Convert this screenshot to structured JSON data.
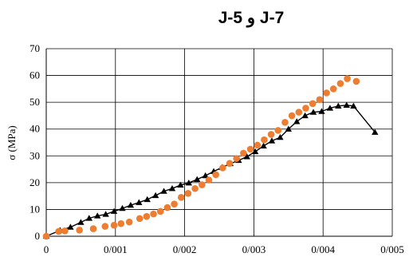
{
  "chart_data": {
    "type": "scatter",
    "title": "J-7 و J-5",
    "xlabel": "",
    "ylabel": "σ (MPa)",
    "xlim": [
      0,
      0.005
    ],
    "ylim": [
      0,
      70
    ],
    "x_ticks": [
      "0",
      "0/001",
      "0/002",
      "0/003",
      "0/004",
      "0/005"
    ],
    "y_ticks": [
      "0",
      "10",
      "20",
      "30",
      "40",
      "50",
      "60",
      "70"
    ],
    "grid": true,
    "series": [
      {
        "marker": "triangle",
        "color": "#000000",
        "line": true,
        "x": [
          0,
          0.0002,
          0.00035,
          0.0005,
          0.00062,
          0.00074,
          0.00086,
          0.00098,
          0.0011,
          0.00122,
          0.00134,
          0.00146,
          0.00158,
          0.0017,
          0.00182,
          0.00194,
          0.00206,
          0.00218,
          0.0023,
          0.00242,
          0.00254,
          0.00266,
          0.00278,
          0.0029,
          0.00302,
          0.00314,
          0.00326,
          0.00338,
          0.0035,
          0.00362,
          0.00374,
          0.00386,
          0.00398,
          0.0041,
          0.00422,
          0.00434,
          0.00444,
          0.00475
        ],
        "y": [
          0,
          2.2,
          3.4,
          5.2,
          6.7,
          7.6,
          8.2,
          9.3,
          10.4,
          11.6,
          12.6,
          13.7,
          15.2,
          16.8,
          17.8,
          19.1,
          19.9,
          21.2,
          22.6,
          24.2,
          25.7,
          27.1,
          28.3,
          29.7,
          31.6,
          33.7,
          35.6,
          36.9,
          40.0,
          42.8,
          45.0,
          46.3,
          46.6,
          47.8,
          48.6,
          48.9,
          48.6,
          38.8
        ]
      },
      {
        "marker": "circle",
        "color": "#ED7D31",
        "line": false,
        "x": [
          0,
          0.00018,
          0.00027,
          0.00048,
          0.00068,
          0.00085,
          0.00098,
          0.00108,
          0.0012,
          0.00135,
          0.00145,
          0.00155,
          0.00165,
          0.00175,
          0.00185,
          0.00195,
          0.00205,
          0.00215,
          0.00225,
          0.00235,
          0.00245,
          0.00255,
          0.00265,
          0.00275,
          0.00285,
          0.00295,
          0.00305,
          0.00315,
          0.00325,
          0.00335,
          0.00345,
          0.00355,
          0.00365,
          0.00375,
          0.00385,
          0.00395,
          0.00405,
          0.00415,
          0.00425,
          0.00435,
          0.00448
        ],
        "y": [
          0,
          1.8,
          2.0,
          2.3,
          2.8,
          3.7,
          4.1,
          4.7,
          5.3,
          6.6,
          7.4,
          8.3,
          9.3,
          10.7,
          12.0,
          14.5,
          16.0,
          17.8,
          19.2,
          21.0,
          23.0,
          25.5,
          27.2,
          29.0,
          31.0,
          32.5,
          34.0,
          36.0,
          38.0,
          39.5,
          42.5,
          45.0,
          46.3,
          47.8,
          49.5,
          51.0,
          53.5,
          55.0,
          57.0,
          58.8,
          57.8
        ]
      }
    ]
  }
}
